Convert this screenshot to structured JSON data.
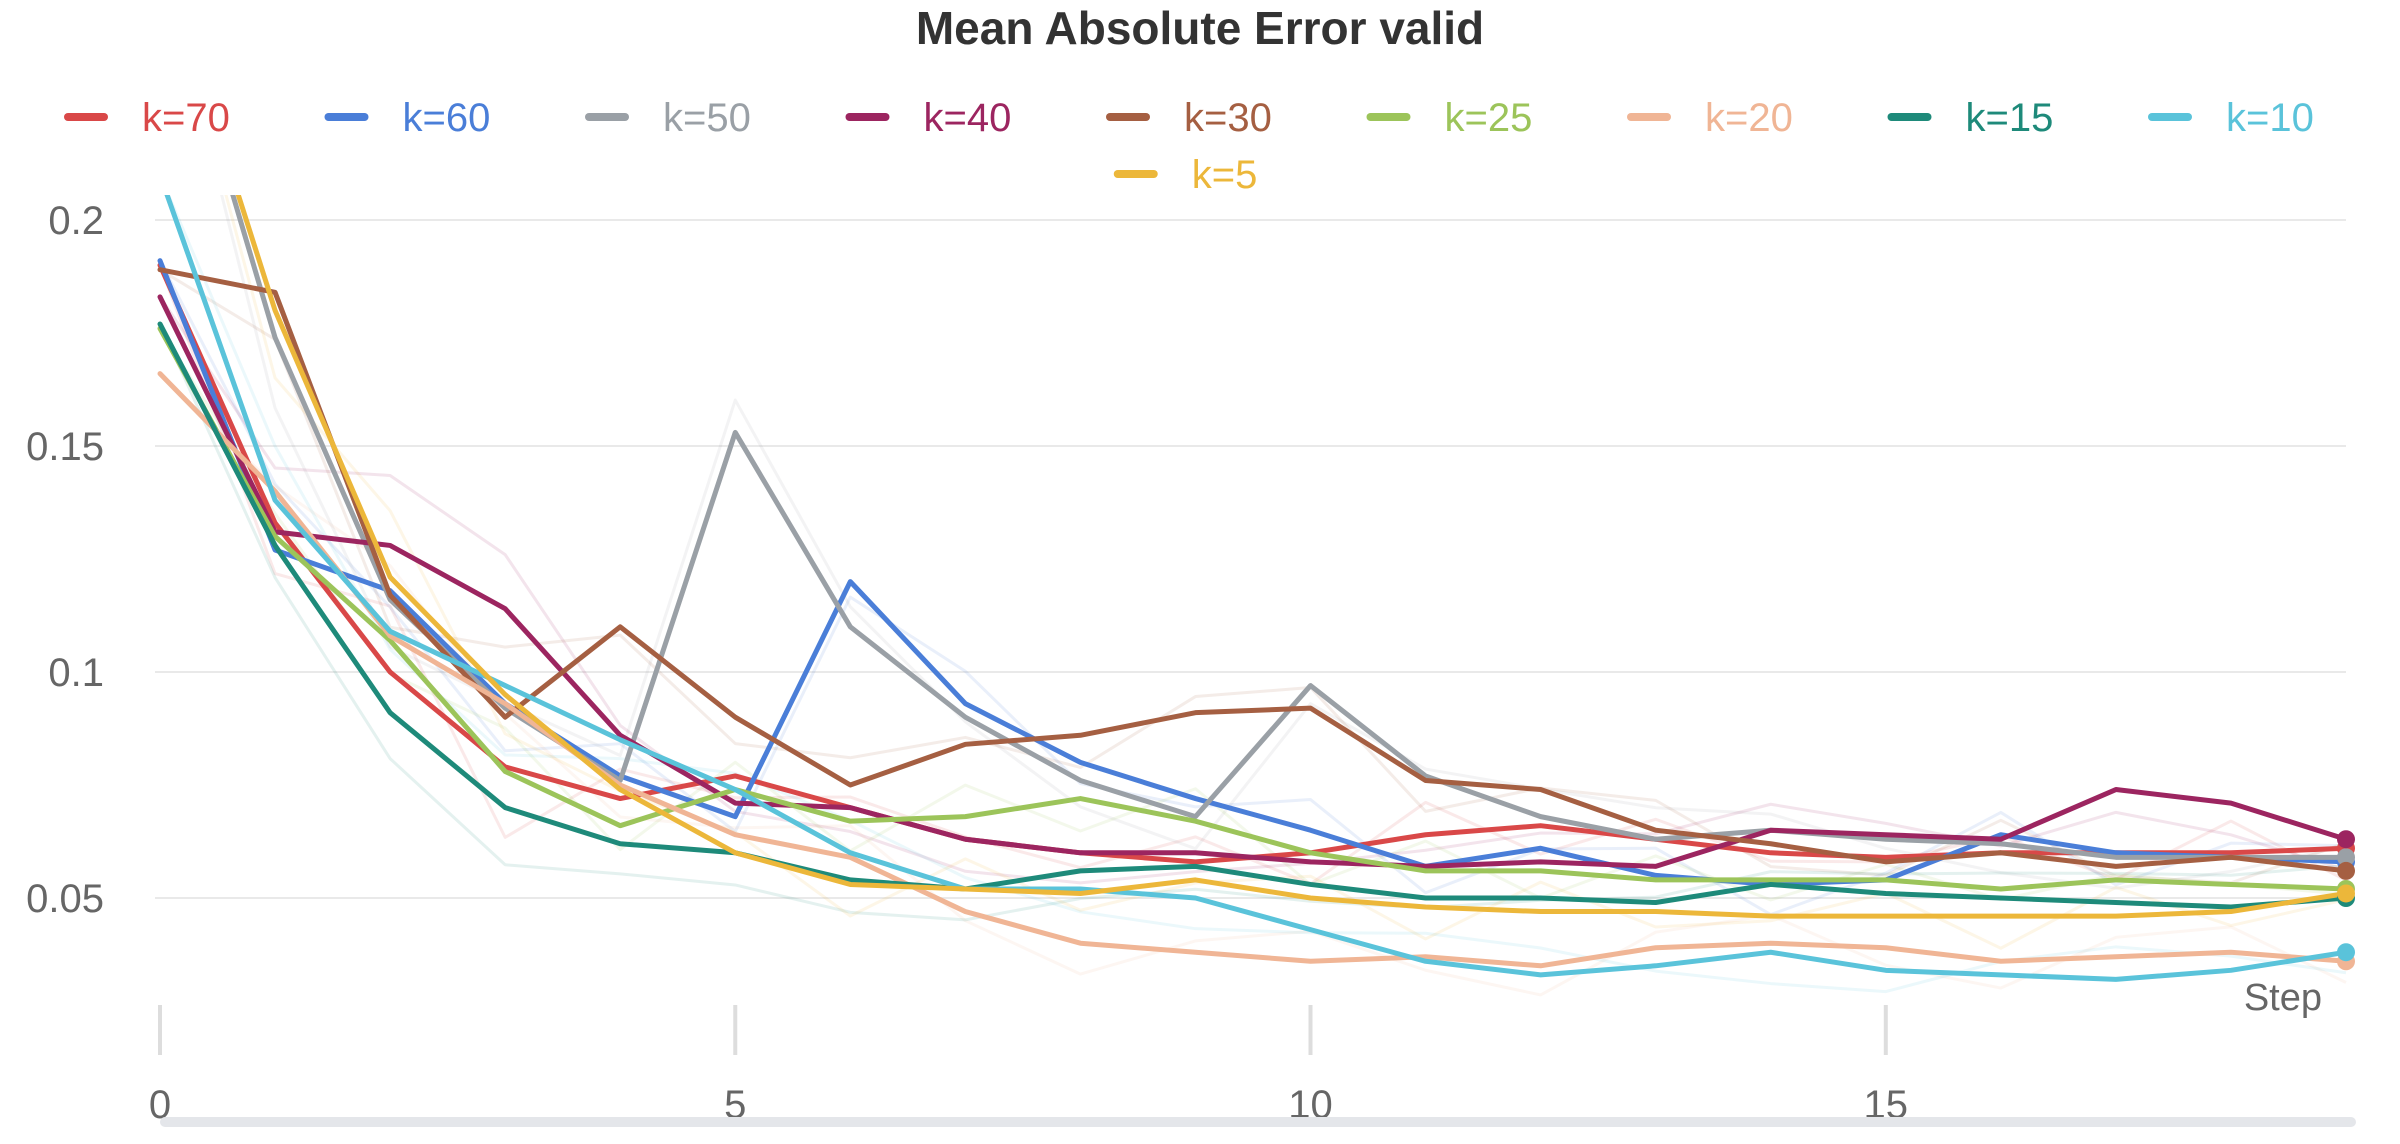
{
  "chart_data": {
    "type": "line",
    "title": "Mean Absolute Error valid",
    "xlabel": "Step",
    "ylabel": "",
    "x": [
      0,
      1,
      2,
      3,
      4,
      5,
      6,
      7,
      8,
      9,
      10,
      11,
      12,
      13,
      14,
      15,
      16,
      17,
      18,
      19
    ],
    "xlim": [
      0,
      19
    ],
    "ylim": [
      0.03,
      0.2
    ],
    "x_ticks": [
      0,
      5,
      10,
      15
    ],
    "x_tick_labels": [
      "0",
      "5",
      "10",
      "15"
    ],
    "y_ticks": [
      0.05,
      0.1,
      0.15,
      0.2
    ],
    "y_tick_labels": [
      "0.05",
      "0.1",
      "0.15",
      "0.2"
    ],
    "grid": true,
    "legend_position": "top",
    "series": [
      {
        "name": "k=70",
        "color": "#d94848",
        "values": [
          0.19,
          0.133,
          0.1,
          0.079,
          0.072,
          0.077,
          0.07,
          0.063,
          0.06,
          0.058,
          0.06,
          0.064,
          0.066,
          0.063,
          0.06,
          0.059,
          0.06,
          0.06,
          0.06,
          0.061
        ]
      },
      {
        "name": "k=60",
        "color": "#4a7ed8",
        "values": [
          0.191,
          0.127,
          0.118,
          0.093,
          0.077,
          0.068,
          0.12,
          0.093,
          0.08,
          0.072,
          0.065,
          0.057,
          0.061,
          0.055,
          0.053,
          0.054,
          0.064,
          0.06,
          0.059,
          0.058
        ]
      },
      {
        "name": "k=50",
        "color": "#9aa0a6",
        "values": [
          0.26,
          0.174,
          0.116,
          0.092,
          0.076,
          0.153,
          0.11,
          0.09,
          0.076,
          0.068,
          0.097,
          0.077,
          0.068,
          0.063,
          0.065,
          0.063,
          0.062,
          0.059,
          0.059,
          0.059
        ]
      },
      {
        "name": "k=40",
        "color": "#9c2560",
        "values": [
          0.183,
          0.131,
          0.128,
          0.114,
          0.086,
          0.071,
          0.07,
          0.063,
          0.06,
          0.06,
          0.058,
          0.057,
          0.058,
          0.057,
          0.065,
          0.064,
          0.063,
          0.074,
          0.071,
          0.063
        ]
      },
      {
        "name": "k=30",
        "color": "#a55f42",
        "values": [
          0.189,
          0.184,
          0.117,
          0.09,
          0.11,
          0.09,
          0.075,
          0.084,
          0.086,
          0.091,
          0.092,
          0.076,
          0.074,
          0.065,
          0.062,
          0.058,
          0.06,
          0.057,
          0.059,
          0.056
        ]
      },
      {
        "name": "k=25",
        "color": "#9cc45a",
        "values": [
          0.176,
          0.13,
          0.107,
          0.078,
          0.066,
          0.074,
          0.067,
          0.068,
          0.072,
          0.067,
          0.06,
          0.056,
          0.056,
          0.054,
          0.054,
          0.054,
          0.052,
          0.054,
          0.053,
          0.052
        ]
      },
      {
        "name": "k=20",
        "color": "#f0b595",
        "values": [
          0.166,
          0.14,
          0.108,
          0.093,
          0.075,
          0.064,
          0.059,
          0.047,
          0.04,
          0.038,
          0.036,
          0.037,
          0.035,
          0.039,
          0.04,
          0.039,
          0.036,
          0.037,
          0.038,
          0.036
        ]
      },
      {
        "name": "k=15",
        "color": "#1e8a7a",
        "values": [
          0.177,
          0.128,
          0.091,
          0.07,
          0.062,
          0.06,
          0.054,
          0.052,
          0.056,
          0.057,
          0.053,
          0.05,
          0.05,
          0.049,
          0.053,
          0.051,
          0.05,
          0.049,
          0.048,
          0.05
        ]
      },
      {
        "name": "k=10",
        "color": "#5ac3da",
        "values": [
          0.21,
          0.138,
          0.109,
          0.097,
          0.085,
          0.074,
          0.06,
          0.052,
          0.052,
          0.05,
          0.043,
          0.036,
          0.033,
          0.035,
          0.038,
          0.034,
          0.033,
          0.032,
          0.034,
          0.038
        ]
      },
      {
        "name": "k=5",
        "color": "#ecb73a",
        "values": [
          0.26,
          0.18,
          0.121,
          0.095,
          0.074,
          0.06,
          0.053,
          0.052,
          0.051,
          0.054,
          0.05,
          0.048,
          0.047,
          0.047,
          0.046,
          0.046,
          0.046,
          0.046,
          0.047,
          0.051
        ]
      }
    ]
  }
}
